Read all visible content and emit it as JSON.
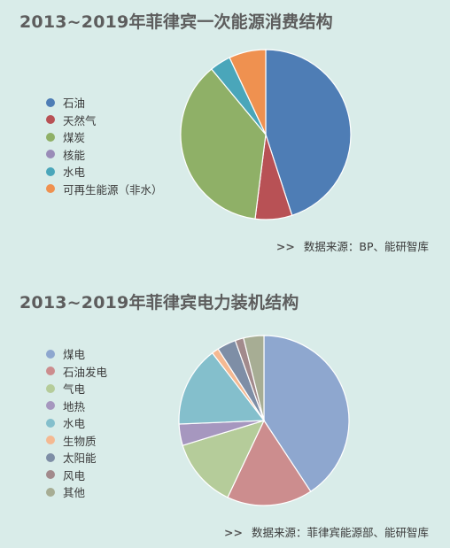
{
  "chart_data": [
    {
      "type": "pie",
      "title": "2013~2019年菲律宾一次能源消费结构",
      "categories": [
        "石油",
        "天然气",
        "煤炭",
        "核能",
        "水电",
        "可再生能源（非水）"
      ],
      "values": [
        45,
        7,
        37,
        0,
        4,
        7
      ],
      "colors": [
        "#4e7db5",
        "#b85155",
        "#8fb067",
        "#9a8cb8",
        "#4aa6ba",
        "#ef9150"
      ],
      "source": "数据来源：BP、能研智库",
      "legend_position": "left"
    },
    {
      "type": "pie",
      "title": "2013~2019年菲律宾电力装机结构",
      "categories": [
        "煤电",
        "石油发电",
        "气电",
        "地热",
        "水电",
        "生物质",
        "太阳能",
        "风电",
        "其他"
      ],
      "values": [
        40,
        16,
        13,
        4,
        15,
        1.3,
        3.5,
        1.6,
        3.8
      ],
      "colors": [
        "#8ea7cf",
        "#cc8d8e",
        "#b5cc9a",
        "#a697bf",
        "#84bfcc",
        "#f4b992",
        "#7e8ea6",
        "#a28a8c",
        "#a7ad94"
      ],
      "source": "数据来源：菲律宾能源部、能研智库",
      "legend_position": "left"
    }
  ],
  "source_arrow": ">>"
}
